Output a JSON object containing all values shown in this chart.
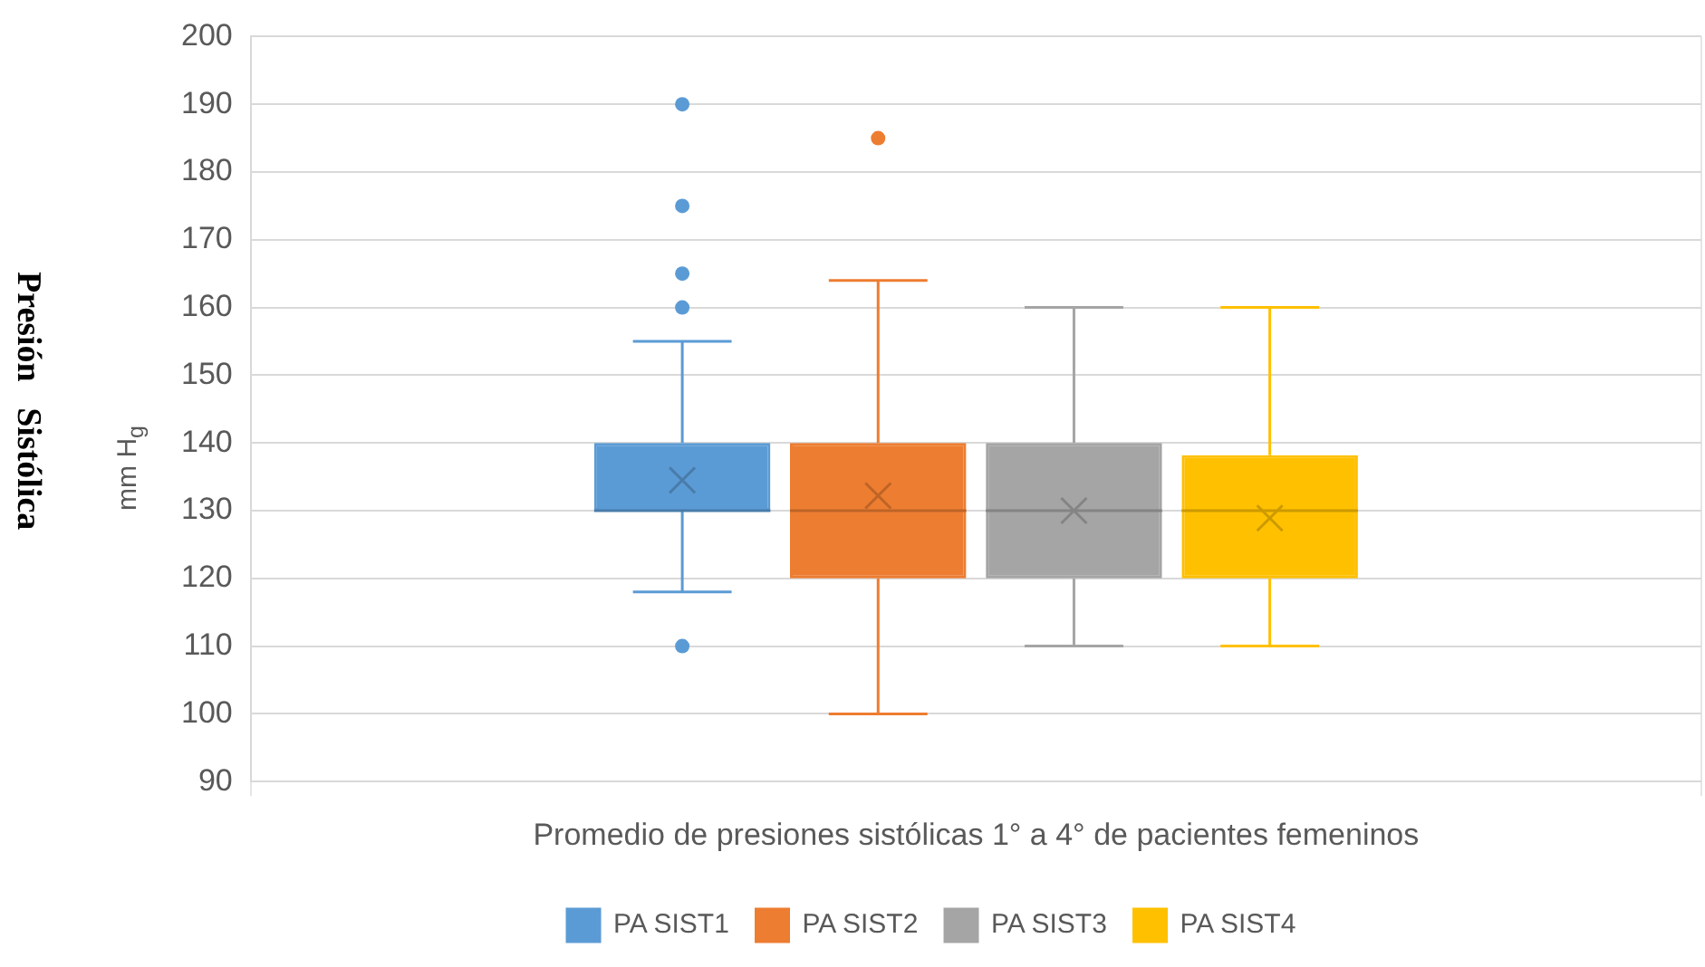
{
  "chart_data": {
    "type": "box",
    "xlabel": "Promedio de presiones sistólicas 1° a 4° de pacientes femeninos",
    "ylabel": "mm H$_{g}$",
    "annotations": [
      "Presión   Sistólica"
    ],
    "categories": [
      null
    ],
    "series": [
      {
        "name": "PA SIST1",
        "color": "#5b9bd5",
        "boxes": [
          {
            "low": 118,
            "q1": 130,
            "median": 130,
            "q3": 140,
            "high": 155,
            "mean": 134.5,
            "outliers": [
              190,
              175,
              165,
              160,
              110
            ]
          }
        ]
      },
      {
        "name": "PA SIST2",
        "color": "#ed7d31",
        "boxes": [
          {
            "low": 100,
            "q1": 120,
            "median": 130,
            "q3": 140,
            "high": 164,
            "mean": 132.2,
            "outliers": [
              185
            ]
          }
        ]
      },
      {
        "name": "PA SIST3",
        "color": "#a5a5a5",
        "boxes": [
          {
            "low": 110,
            "q1": 120,
            "median": 130,
            "q3": 140,
            "high": 160,
            "mean": 130
          }
        ]
      },
      {
        "name": "PA SIST4",
        "color": "#ffc000",
        "boxes": [
          {
            "low": 110,
            "q1": 120,
            "median": 130,
            "q3": 138.2,
            "high": 160,
            "mean": 128.9
          }
        ]
      }
    ],
    "ylim": [
      90,
      200
    ],
    "yticks": [
      90,
      100,
      110,
      120,
      130,
      140,
      150,
      160,
      170,
      180,
      190,
      200
    ],
    "grid": true,
    "legend": "bottom"
  }
}
